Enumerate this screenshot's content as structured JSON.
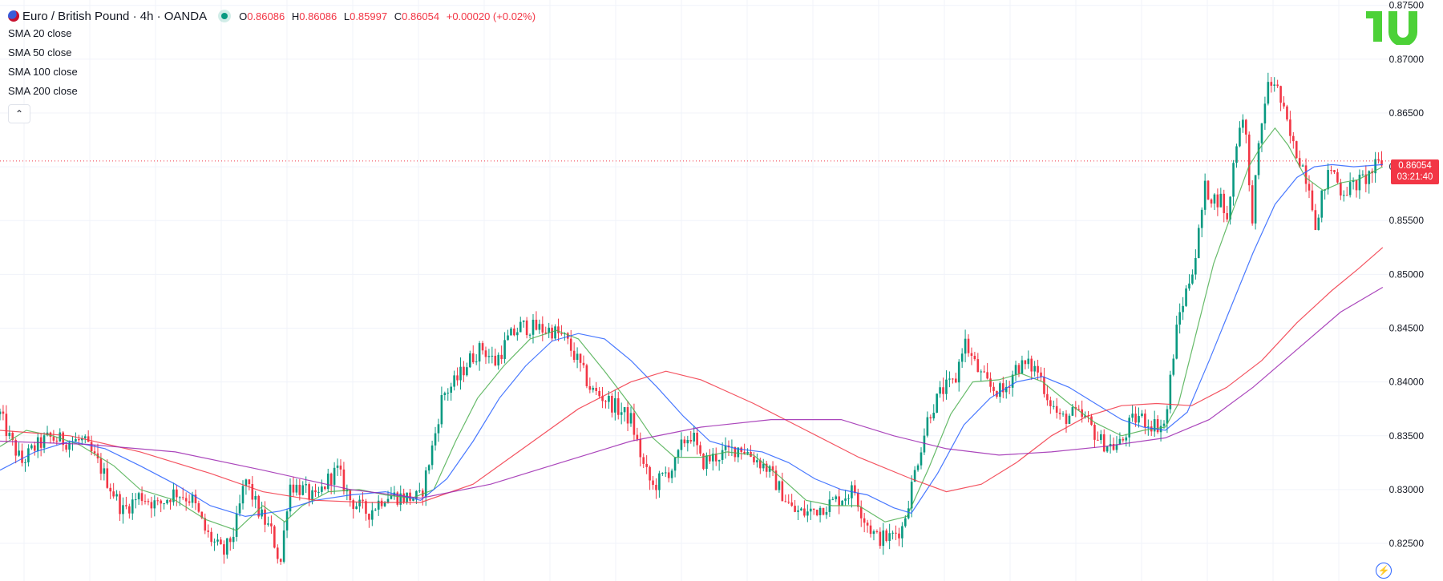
{
  "header": {
    "title": "Euro / British Pound · 4h · OANDA",
    "ohlc": {
      "o_label": "O",
      "o": "0.86086",
      "h_label": "H",
      "h": "0.86086",
      "l_label": "L",
      "l": "0.85997",
      "c_label": "C",
      "c": "0.86054",
      "change": "+0.00020 (+0.02%)"
    }
  },
  "indicators": [
    {
      "label": "SMA 20 close",
      "color": "#4caf50"
    },
    {
      "label": "SMA 50 close",
      "color": "#2962ff"
    },
    {
      "label": "SMA 100 close",
      "color": "#f23645"
    },
    {
      "label": "SMA 200 close",
      "color": "#9c27b0"
    }
  ],
  "price_tag": {
    "price": "0.86054",
    "countdown": "03:21:40"
  },
  "colors": {
    "up": "#089981",
    "down": "#f23645",
    "grid": "#f0f3fa",
    "axis_text": "#131722"
  },
  "chart_data": {
    "type": "candlestick",
    "symbol": "EURGBP",
    "timeframe": "4h",
    "ylim": [
      0.8215,
      0.8755
    ],
    "ytick_labels": [
      "0.82500",
      "0.83000",
      "0.83500",
      "0.84000",
      "0.84500",
      "0.85000",
      "0.85500",
      "0.86000",
      "0.86500",
      "0.87000",
      "0.87500"
    ],
    "yticks": [
      0.825,
      0.83,
      0.835,
      0.84,
      0.845,
      0.85,
      0.855,
      0.86,
      0.865,
      0.87,
      0.875
    ],
    "last_price": 0.86054,
    "grid": true,
    "close_path": [
      [
        0,
        0.837
      ],
      [
        12,
        0.8345
      ],
      [
        25,
        0.8325
      ],
      [
        38,
        0.8338
      ],
      [
        55,
        0.8348
      ],
      [
        75,
        0.8345
      ],
      [
        95,
        0.8345
      ],
      [
        115,
        0.832
      ],
      [
        140,
        0.828
      ],
      [
        160,
        0.8295
      ],
      [
        180,
        0.8285
      ],
      [
        200,
        0.8298
      ],
      [
        220,
        0.829
      ],
      [
        235,
        0.826
      ],
      [
        255,
        0.824
      ],
      [
        268,
        0.8262
      ],
      [
        280,
        0.831
      ],
      [
        295,
        0.828
      ],
      [
        310,
        0.826
      ],
      [
        320,
        0.823
      ],
      [
        330,
        0.8305
      ],
      [
        345,
        0.83
      ],
      [
        360,
        0.829
      ],
      [
        375,
        0.831
      ],
      [
        385,
        0.8318
      ],
      [
        400,
        0.829
      ],
      [
        420,
        0.8278
      ],
      [
        440,
        0.8295
      ],
      [
        460,
        0.8293
      ],
      [
        480,
        0.8292
      ],
      [
        495,
        0.8345
      ],
      [
        505,
        0.8388
      ],
      [
        520,
        0.84
      ],
      [
        535,
        0.842
      ],
      [
        550,
        0.8432
      ],
      [
        565,
        0.8418
      ],
      [
        580,
        0.844
      ],
      [
        595,
        0.8452
      ],
      [
        610,
        0.845
      ],
      [
        630,
        0.8448
      ],
      [
        645,
        0.844
      ],
      [
        660,
        0.8418
      ],
      [
        675,
        0.8392
      ],
      [
        690,
        0.8385
      ],
      [
        705,
        0.8375
      ],
      [
        720,
        0.8365
      ],
      [
        735,
        0.832
      ],
      [
        745,
        0.8302
      ],
      [
        760,
        0.8315
      ],
      [
        770,
        0.8322
      ],
      [
        780,
        0.8345
      ],
      [
        790,
        0.8352
      ],
      [
        800,
        0.8325
      ],
      [
        815,
        0.833
      ],
      [
        830,
        0.8335
      ],
      [
        845,
        0.834
      ],
      [
        860,
        0.833
      ],
      [
        875,
        0.832
      ],
      [
        890,
        0.83
      ],
      [
        905,
        0.828
      ],
      [
        920,
        0.8278
      ],
      [
        935,
        0.8283
      ],
      [
        950,
        0.8288
      ],
      [
        965,
        0.8295
      ],
      [
        975,
        0.83
      ],
      [
        985,
        0.8275
      ],
      [
        1000,
        0.8255
      ],
      [
        1015,
        0.8255
      ],
      [
        1030,
        0.8265
      ],
      [
        1045,
        0.832
      ],
      [
        1060,
        0.837
      ],
      [
        1075,
        0.8392
      ],
      [
        1090,
        0.84
      ],
      [
        1100,
        0.844
      ],
      [
        1110,
        0.842
      ],
      [
        1120,
        0.8405
      ],
      [
        1130,
        0.8395
      ],
      [
        1145,
        0.839
      ],
      [
        1160,
        0.8415
      ],
      [
        1175,
        0.8415
      ],
      [
        1185,
        0.841
      ],
      [
        1195,
        0.8388
      ],
      [
        1210,
        0.8365
      ],
      [
        1225,
        0.837
      ],
      [
        1240,
        0.8365
      ],
      [
        1255,
        0.8345
      ],
      [
        1270,
        0.834
      ],
      [
        1280,
        0.8343
      ],
      [
        1290,
        0.8362
      ],
      [
        1300,
        0.8368
      ],
      [
        1310,
        0.8362
      ],
      [
        1320,
        0.836
      ],
      [
        1330,
        0.836
      ],
      [
        1338,
        0.842
      ],
      [
        1345,
        0.846
      ],
      [
        1355,
        0.8488
      ],
      [
        1365,
        0.852
      ],
      [
        1375,
        0.858
      ],
      [
        1385,
        0.857
      ],
      [
        1395,
        0.857
      ],
      [
        1400,
        0.8545
      ],
      [
        1410,
        0.862
      ],
      [
        1420,
        0.8655
      ],
      [
        1428,
        0.8545
      ],
      [
        1435,
        0.8605
      ],
      [
        1445,
        0.8672
      ],
      [
        1455,
        0.868
      ],
      [
        1465,
        0.865
      ],
      [
        1475,
        0.862
      ],
      [
        1485,
        0.8605
      ],
      [
        1495,
        0.858
      ],
      [
        1503,
        0.854
      ],
      [
        1510,
        0.858
      ],
      [
        1520,
        0.86
      ],
      [
        1530,
        0.8578
      ],
      [
        1540,
        0.858
      ],
      [
        1550,
        0.8585
      ],
      [
        1560,
        0.859
      ],
      [
        1570,
        0.86
      ],
      [
        1578,
        0.8605
      ]
    ],
    "sma_paths": {
      "sma20": [
        [
          0,
          0.834
        ],
        [
          30,
          0.8355
        ],
        [
          60,
          0.835
        ],
        [
          90,
          0.8342
        ],
        [
          130,
          0.8322
        ],
        [
          160,
          0.83
        ],
        [
          200,
          0.829
        ],
        [
          235,
          0.8272
        ],
        [
          270,
          0.8262
        ],
        [
          300,
          0.8285
        ],
        [
          325,
          0.827
        ],
        [
          345,
          0.8285
        ],
        [
          375,
          0.8298
        ],
        [
          410,
          0.83
        ],
        [
          440,
          0.8295
        ],
        [
          470,
          0.8292
        ],
        [
          495,
          0.83
        ],
        [
          520,
          0.8345
        ],
        [
          545,
          0.8385
        ],
        [
          575,
          0.8415
        ],
        [
          605,
          0.844
        ],
        [
          635,
          0.8448
        ],
        [
          660,
          0.844
        ],
        [
          690,
          0.841
        ],
        [
          720,
          0.8378
        ],
        [
          745,
          0.8348
        ],
        [
          770,
          0.833
        ],
        [
          800,
          0.833
        ],
        [
          830,
          0.8335
        ],
        [
          860,
          0.8332
        ],
        [
          890,
          0.8312
        ],
        [
          920,
          0.829
        ],
        [
          950,
          0.8285
        ],
        [
          980,
          0.8285
        ],
        [
          1010,
          0.827
        ],
        [
          1035,
          0.8275
        ],
        [
          1060,
          0.832
        ],
        [
          1085,
          0.837
        ],
        [
          1110,
          0.84
        ],
        [
          1140,
          0.8402
        ],
        [
          1165,
          0.8408
        ],
        [
          1190,
          0.84
        ],
        [
          1220,
          0.838
        ],
        [
          1250,
          0.8362
        ],
        [
          1280,
          0.835
        ],
        [
          1305,
          0.8355
        ],
        [
          1330,
          0.8358
        ],
        [
          1345,
          0.838
        ],
        [
          1365,
          0.8445
        ],
        [
          1385,
          0.851
        ],
        [
          1405,
          0.8555
        ],
        [
          1425,
          0.86
        ],
        [
          1440,
          0.862
        ],
        [
          1455,
          0.8636
        ],
        [
          1470,
          0.862
        ],
        [
          1490,
          0.859
        ],
        [
          1510,
          0.8578
        ],
        [
          1530,
          0.8585
        ],
        [
          1550,
          0.8588
        ],
        [
          1578,
          0.86
        ]
      ],
      "sma50": [
        [
          0,
          0.8318
        ],
        [
          40,
          0.8335
        ],
        [
          80,
          0.8345
        ],
        [
          120,
          0.8338
        ],
        [
          160,
          0.8322
        ],
        [
          200,
          0.8305
        ],
        [
          240,
          0.8285
        ],
        [
          280,
          0.8275
        ],
        [
          320,
          0.828
        ],
        [
          360,
          0.829
        ],
        [
          400,
          0.8295
        ],
        [
          440,
          0.8298
        ],
        [
          480,
          0.829
        ],
        [
          510,
          0.831
        ],
        [
          540,
          0.8345
        ],
        [
          570,
          0.8385
        ],
        [
          600,
          0.8415
        ],
        [
          630,
          0.8438
        ],
        [
          660,
          0.8445
        ],
        [
          690,
          0.844
        ],
        [
          720,
          0.842
        ],
        [
          750,
          0.8395
        ],
        [
          780,
          0.8368
        ],
        [
          810,
          0.8345
        ],
        [
          840,
          0.8338
        ],
        [
          870,
          0.8335
        ],
        [
          900,
          0.8325
        ],
        [
          930,
          0.831
        ],
        [
          960,
          0.83
        ],
        [
          990,
          0.8295
        ],
        [
          1020,
          0.8283
        ],
        [
          1040,
          0.8278
        ],
        [
          1070,
          0.8315
        ],
        [
          1100,
          0.836
        ],
        [
          1130,
          0.8385
        ],
        [
          1160,
          0.84
        ],
        [
          1190,
          0.8405
        ],
        [
          1220,
          0.8395
        ],
        [
          1250,
          0.838
        ],
        [
          1280,
          0.8365
        ],
        [
          1305,
          0.8358
        ],
        [
          1330,
          0.8355
        ],
        [
          1355,
          0.8372
        ],
        [
          1380,
          0.842
        ],
        [
          1405,
          0.847
        ],
        [
          1430,
          0.852
        ],
        [
          1455,
          0.8565
        ],
        [
          1480,
          0.859
        ],
        [
          1500,
          0.86
        ],
        [
          1520,
          0.8602
        ],
        [
          1545,
          0.86
        ],
        [
          1578,
          0.8602
        ]
      ],
      "sma100": [
        [
          0,
          0.8355
        ],
        [
          80,
          0.835
        ],
        [
          160,
          0.8335
        ],
        [
          240,
          0.8315
        ],
        [
          300,
          0.8298
        ],
        [
          360,
          0.829
        ],
        [
          420,
          0.8288
        ],
        [
          480,
          0.8288
        ],
        [
          540,
          0.8305
        ],
        [
          600,
          0.834
        ],
        [
          660,
          0.8375
        ],
        [
          720,
          0.84
        ],
        [
          760,
          0.841
        ],
        [
          800,
          0.8402
        ],
        [
          860,
          0.838
        ],
        [
          920,
          0.8355
        ],
        [
          980,
          0.833
        ],
        [
          1040,
          0.831
        ],
        [
          1080,
          0.8298
        ],
        [
          1120,
          0.8305
        ],
        [
          1160,
          0.8325
        ],
        [
          1200,
          0.835
        ],
        [
          1240,
          0.8368
        ],
        [
          1280,
          0.8378
        ],
        [
          1320,
          0.838
        ],
        [
          1360,
          0.8378
        ],
        [
          1400,
          0.8395
        ],
        [
          1440,
          0.842
        ],
        [
          1480,
          0.8455
        ],
        [
          1520,
          0.8485
        ],
        [
          1550,
          0.8505
        ],
        [
          1578,
          0.8525
        ]
      ],
      "sma200": [
        [
          0,
          0.8345
        ],
        [
          100,
          0.8342
        ],
        [
          200,
          0.8335
        ],
        [
          300,
          0.8318
        ],
        [
          400,
          0.83
        ],
        [
          480,
          0.8292
        ],
        [
          560,
          0.8305
        ],
        [
          640,
          0.8325
        ],
        [
          720,
          0.8345
        ],
        [
          800,
          0.8358
        ],
        [
          880,
          0.8365
        ],
        [
          960,
          0.8365
        ],
        [
          1020,
          0.835
        ],
        [
          1080,
          0.8338
        ],
        [
          1140,
          0.8332
        ],
        [
          1200,
          0.8335
        ],
        [
          1260,
          0.834
        ],
        [
          1330,
          0.8348
        ],
        [
          1380,
          0.8365
        ],
        [
          1430,
          0.8395
        ],
        [
          1480,
          0.843
        ],
        [
          1530,
          0.8465
        ],
        [
          1578,
          0.8488
        ]
      ]
    }
  }
}
